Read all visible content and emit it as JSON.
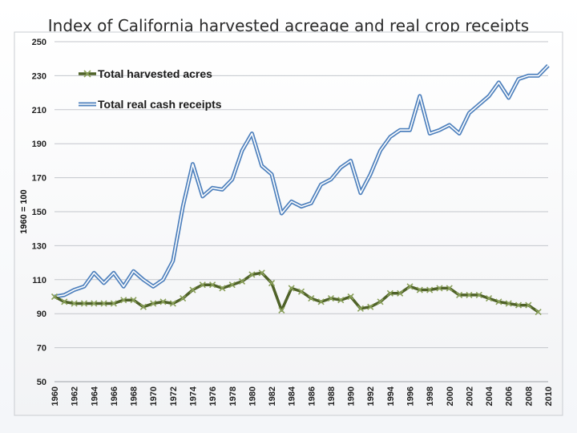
{
  "title": "Index of California harvested acreage and real crop receipts",
  "chart_data": {
    "type": "line",
    "title": "Index of California harvested acreage and real crop receipts",
    "xlabel": "",
    "ylabel": "1960 = 100",
    "ylim": [
      50,
      250
    ],
    "yticks": [
      50,
      70,
      90,
      110,
      130,
      150,
      170,
      190,
      210,
      230,
      250
    ],
    "xticks": [
      1960,
      1962,
      1964,
      1966,
      1968,
      1970,
      1972,
      1974,
      1976,
      1978,
      1980,
      1982,
      1984,
      1986,
      1988,
      1990,
      1992,
      1994,
      1996,
      1998,
      2000,
      2002,
      2004,
      2006,
      2008,
      2010
    ],
    "grid": true,
    "legend": "top-left",
    "x": [
      1960,
      1961,
      1962,
      1963,
      1964,
      1965,
      1966,
      1967,
      1968,
      1969,
      1970,
      1971,
      1972,
      1973,
      1974,
      1975,
      1976,
      1977,
      1978,
      1979,
      1980,
      1981,
      1982,
      1983,
      1984,
      1985,
      1986,
      1987,
      1988,
      1989,
      1990,
      1991,
      1992,
      1993,
      1994,
      1995,
      1996,
      1997,
      1998,
      1999,
      2000,
      2001,
      2002,
      2003,
      2004,
      2005,
      2006,
      2007,
      2008,
      2009,
      2010
    ],
    "series": [
      {
        "name": "Total harvested acres",
        "color": "#4f6228",
        "marker": "x",
        "values": [
          100,
          97,
          96,
          96,
          96,
          96,
          96,
          98,
          98,
          94,
          96,
          97,
          96,
          99,
          104,
          107,
          107,
          105,
          107,
          109,
          113,
          114,
          108,
          92,
          105,
          103,
          99,
          97,
          99,
          98,
          100,
          93,
          94,
          97,
          102,
          102,
          106,
          104,
          104,
          105,
          105,
          101,
          101,
          101,
          99,
          97,
          96,
          95,
          95,
          91,
          null
        ]
      },
      {
        "name": "Total real cash receipts",
        "color": "#4f81bd",
        "marker": "none",
        "values": [
          100,
          101,
          104,
          106,
          114,
          108,
          114,
          106,
          115,
          110,
          106,
          110,
          121,
          153,
          178,
          159,
          164,
          163,
          169,
          186,
          196,
          177,
          172,
          149,
          156,
          153,
          155,
          166,
          169,
          176,
          180,
          161,
          172,
          186,
          194,
          198,
          198,
          218,
          196,
          198,
          201,
          196,
          208,
          213,
          218,
          226,
          217,
          228,
          230,
          230,
          236
        ]
      }
    ]
  }
}
